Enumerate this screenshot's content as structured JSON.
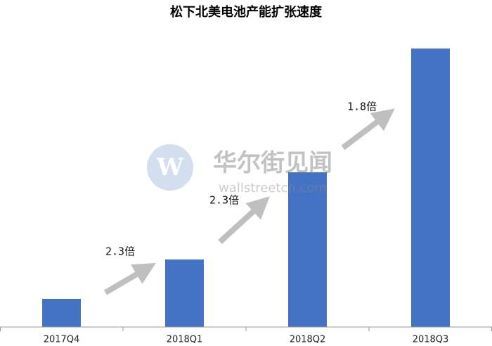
{
  "chart_data": {
    "type": "bar",
    "title": "松下北美电池产能扩张速度",
    "categories": [
      "2017Q4",
      "2018Q1",
      "2018Q2",
      "2018Q3"
    ],
    "values": [
      1,
      2.4,
      5.5,
      9.9
    ],
    "color": "#4472c4",
    "ylim": [
      0,
      10
    ],
    "annotations": [
      "2.3倍",
      "2.3倍",
      "1.8倍"
    ],
    "watermark": [
      "华尔街见闻",
      "wallstreetcn.com"
    ]
  }
}
